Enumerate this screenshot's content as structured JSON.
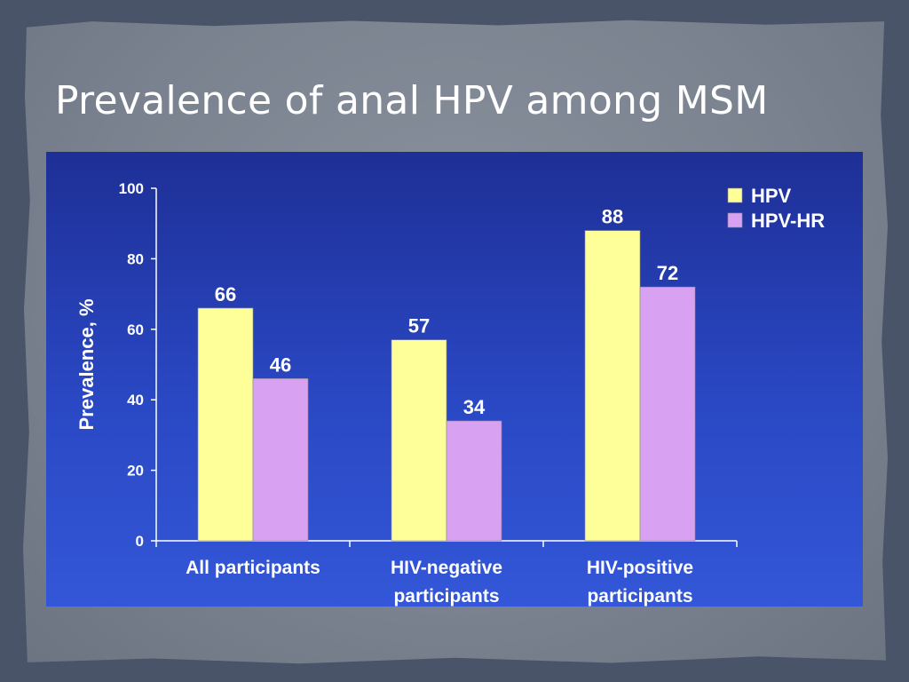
{
  "slide": {
    "title": "Prevalence of anal HPV among MSM"
  },
  "chart_data": {
    "type": "bar",
    "title": "",
    "ylabel": "Prevalence, %",
    "xlabel": "",
    "categories": [
      [
        "All participants"
      ],
      [
        "HIV-negative",
        "participants"
      ],
      [
        "HIV-positive",
        "participants"
      ]
    ],
    "series": [
      {
        "name": "HPV",
        "values": [
          66,
          57,
          88
        ],
        "color": "#ffff99"
      },
      {
        "name": "HPV-HR",
        "values": [
          46,
          34,
          72
        ],
        "color": "#d9a1f2"
      }
    ],
    "ylim": [
      0,
      100
    ],
    "yticks": [
      "0",
      "20",
      "40",
      "60",
      "80",
      "100"
    ],
    "grid": false,
    "legend": "top-right",
    "data_labels": true
  }
}
